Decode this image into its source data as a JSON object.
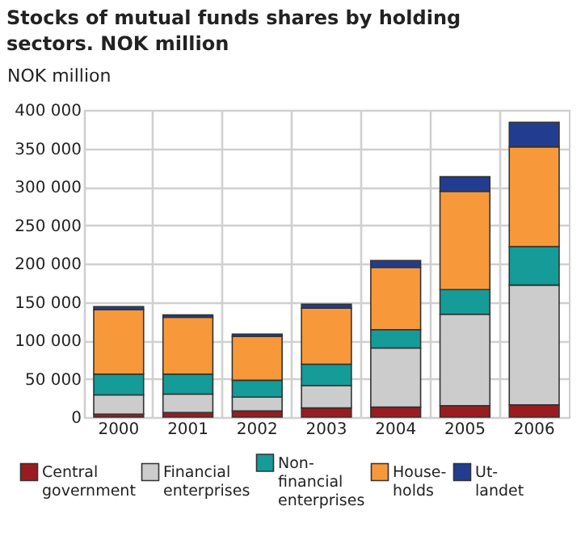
{
  "chart_data": {
    "type": "bar",
    "title": "Stocks of mutual funds shares by holding sectors. NOK million",
    "ylabel": "NOK million",
    "stacked": true,
    "grid": true,
    "legend": "bottom",
    "categories": [
      "2000",
      "2001",
      "2002",
      "2003",
      "2004",
      "2005",
      "2006"
    ],
    "ylim": [
      0,
      400000
    ],
    "yticks": [
      {
        "value": 0,
        "label": "0"
      },
      {
        "value": 50000,
        "label": "50 000"
      },
      {
        "value": 100000,
        "label": "100 000"
      },
      {
        "value": 150000,
        "label": "150 000"
      },
      {
        "value": 200000,
        "label": "200 000"
      },
      {
        "value": 250000,
        "label": "250 000"
      },
      {
        "value": 300000,
        "label": "300 000"
      },
      {
        "value": 350000,
        "label": "350 000"
      },
      {
        "value": 400000,
        "label": "400 000"
      }
    ],
    "series": [
      {
        "name": "Central government",
        "color": "#9b1c20",
        "values": [
          4000,
          6000,
          8000,
          12000,
          13000,
          15000,
          16000
        ]
      },
      {
        "name": "Financial enterprises",
        "color": "#cccccc",
        "values": [
          25000,
          24000,
          18000,
          29000,
          77000,
          119000,
          156000
        ]
      },
      {
        "name": "Non-financial enterprises",
        "color": "#159b98",
        "values": [
          27000,
          26000,
          22000,
          28000,
          24000,
          32000,
          50000
        ]
      },
      {
        "name": "House-holds",
        "color": "#f7993a",
        "values": [
          84000,
          74000,
          57000,
          73000,
          81000,
          128000,
          130000
        ]
      },
      {
        "name": "Ut-landet",
        "color": "#223d90",
        "values": [
          4000,
          3000,
          3000,
          5000,
          9000,
          19000,
          32000
        ]
      }
    ]
  }
}
